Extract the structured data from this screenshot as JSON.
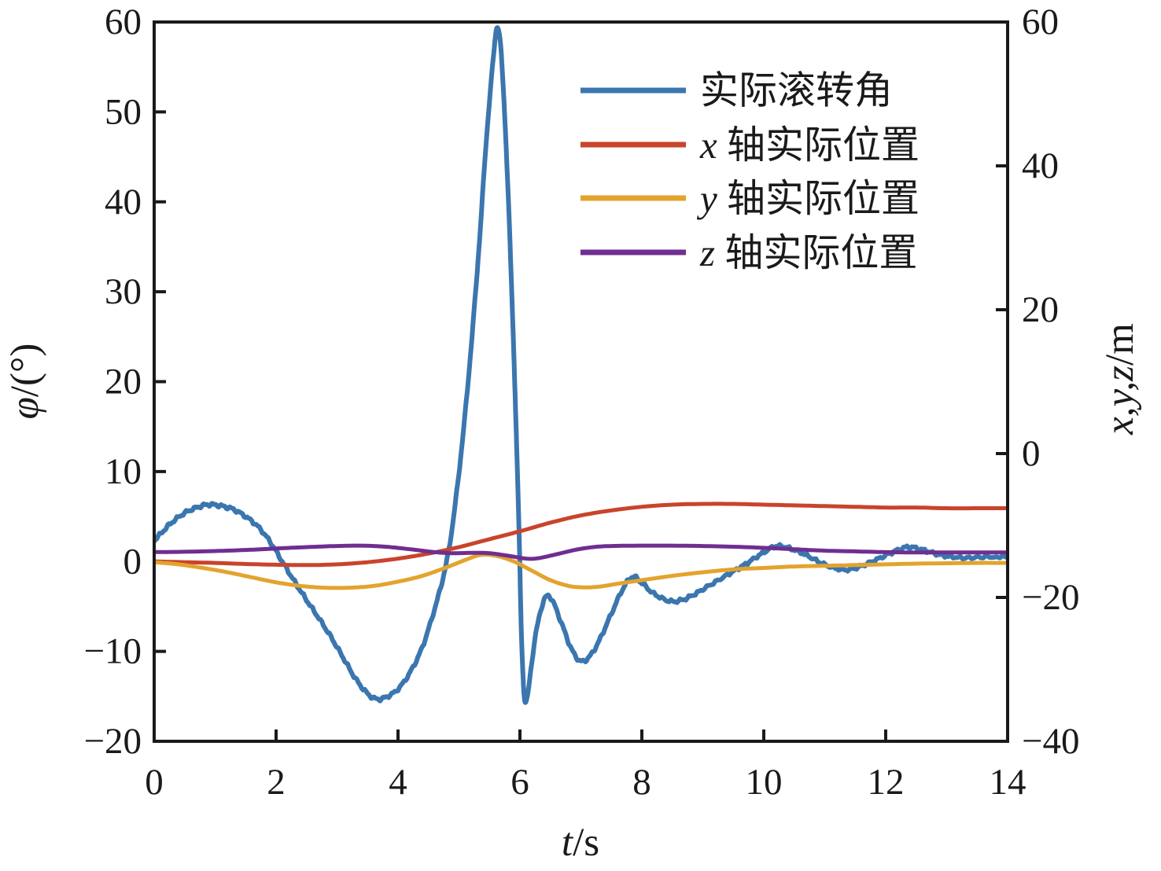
{
  "chart_data": {
    "type": "line",
    "title": "",
    "grid": false,
    "legend_position": "upper-right-inside",
    "x_axis": {
      "label_italic": "t",
      "label_rest": "/s",
      "range": [
        0,
        14
      ],
      "ticks": [
        0,
        2,
        4,
        6,
        8,
        10,
        12,
        14
      ]
    },
    "y_axis_left": {
      "label_italic": "φ",
      "label_rest": "/(°)",
      "range": [
        -20,
        60
      ],
      "ticks": [
        -20,
        -10,
        0,
        10,
        20,
        30,
        40,
        50,
        60
      ]
    },
    "y_axis_right": {
      "label_italic": "x,y,z",
      "label_rest": "/m",
      "range": [
        -40,
        60
      ],
      "ticks": [
        -40,
        -20,
        0,
        20,
        40,
        60
      ]
    },
    "series": [
      {
        "name": "roll-angle",
        "legend_prefix_italic": "",
        "legend_text": "实际滚转角",
        "axis": "left",
        "unit": "deg",
        "color": "#3b76af",
        "noisy": true,
        "points": [
          [
            0,
            2.3
          ],
          [
            0.15,
            3.4
          ],
          [
            0.3,
            4.4
          ],
          [
            0.5,
            5.4
          ],
          [
            0.7,
            6.0
          ],
          [
            0.85,
            6.3
          ],
          [
            1.0,
            6.3
          ],
          [
            1.15,
            6.1
          ],
          [
            1.3,
            5.8
          ],
          [
            1.5,
            5.0
          ],
          [
            1.7,
            3.9
          ],
          [
            1.9,
            2.2
          ],
          [
            2.1,
            0.0
          ],
          [
            2.3,
            -2.2
          ],
          [
            2.5,
            -4.3
          ],
          [
            2.7,
            -6.3
          ],
          [
            2.9,
            -8.4
          ],
          [
            3.1,
            -10.7
          ],
          [
            3.3,
            -13.0
          ],
          [
            3.5,
            -14.7
          ],
          [
            3.65,
            -15.3
          ],
          [
            3.8,
            -15.1
          ],
          [
            4.0,
            -14.2
          ],
          [
            4.2,
            -12.3
          ],
          [
            4.4,
            -9.5
          ],
          [
            4.6,
            -5.3
          ],
          [
            4.75,
            -1.5
          ],
          [
            4.85,
            2.0
          ],
          [
            4.95,
            7.0
          ],
          [
            5.05,
            13.0
          ],
          [
            5.15,
            20.0
          ],
          [
            5.25,
            28.0
          ],
          [
            5.35,
            37.0
          ],
          [
            5.45,
            47.0
          ],
          [
            5.55,
            55.0
          ],
          [
            5.62,
            59.4
          ],
          [
            5.68,
            57.5
          ],
          [
            5.74,
            51.0
          ],
          [
            5.8,
            42.0
          ],
          [
            5.86,
            31.0
          ],
          [
            5.91,
            21.0
          ],
          [
            5.95,
            12.0
          ],
          [
            5.99,
            2.0
          ],
          [
            6.02,
            -7.0
          ],
          [
            6.05,
            -12.6
          ],
          [
            6.08,
            -15.4
          ],
          [
            6.12,
            -15.2
          ],
          [
            6.18,
            -12.0
          ],
          [
            6.25,
            -8.5
          ],
          [
            6.35,
            -5.2
          ],
          [
            6.45,
            -3.8
          ],
          [
            6.55,
            -4.6
          ],
          [
            6.7,
            -7.2
          ],
          [
            6.85,
            -9.8
          ],
          [
            7.0,
            -11.1
          ],
          [
            7.15,
            -10.5
          ],
          [
            7.3,
            -8.8
          ],
          [
            7.5,
            -5.8
          ],
          [
            7.7,
            -2.9
          ],
          [
            7.85,
            -1.7
          ],
          [
            8.0,
            -2.4
          ],
          [
            8.2,
            -3.6
          ],
          [
            8.45,
            -4.4
          ],
          [
            8.65,
            -4.3
          ],
          [
            8.85,
            -3.7
          ],
          [
            9.1,
            -2.7
          ],
          [
            9.4,
            -1.5
          ],
          [
            9.7,
            -0.3
          ],
          [
            9.95,
            0.8
          ],
          [
            10.2,
            1.7
          ],
          [
            10.45,
            1.4
          ],
          [
            10.7,
            0.7
          ],
          [
            10.95,
            -0.2
          ],
          [
            11.2,
            -0.8
          ],
          [
            11.4,
            -0.9
          ],
          [
            11.6,
            -0.5
          ],
          [
            11.85,
            0.2
          ],
          [
            12.1,
            1.0
          ],
          [
            12.35,
            1.6
          ],
          [
            12.55,
            1.4
          ],
          [
            12.8,
            0.9
          ],
          [
            13.0,
            0.6
          ],
          [
            13.3,
            0.4
          ],
          [
            13.6,
            0.5
          ],
          [
            14,
            0.5
          ]
        ]
      },
      {
        "name": "x-position",
        "legend_prefix_italic": "x",
        "legend_text": " 轴实际位置",
        "axis": "right",
        "unit": "m",
        "color": "#c8442b",
        "noisy": false,
        "points": [
          [
            0,
            -15.0
          ],
          [
            0.5,
            -15.1
          ],
          [
            1.0,
            -15.2
          ],
          [
            1.5,
            -15.35
          ],
          [
            2.0,
            -15.45
          ],
          [
            2.5,
            -15.5
          ],
          [
            3.0,
            -15.4
          ],
          [
            3.5,
            -15.1
          ],
          [
            4.0,
            -14.6
          ],
          [
            4.5,
            -13.9
          ],
          [
            5.0,
            -13.0
          ],
          [
            5.5,
            -11.9
          ],
          [
            6.0,
            -10.8
          ],
          [
            6.5,
            -9.6
          ],
          [
            7.0,
            -8.6
          ],
          [
            7.5,
            -7.9
          ],
          [
            8.0,
            -7.4
          ],
          [
            8.5,
            -7.1
          ],
          [
            9.0,
            -7.0
          ],
          [
            9.5,
            -7.0
          ],
          [
            10.0,
            -7.1
          ],
          [
            10.5,
            -7.2
          ],
          [
            11.0,
            -7.3
          ],
          [
            11.5,
            -7.4
          ],
          [
            12.0,
            -7.5
          ],
          [
            12.5,
            -7.5
          ],
          [
            13.0,
            -7.6
          ],
          [
            13.5,
            -7.6
          ],
          [
            14.0,
            -7.6
          ]
        ]
      },
      {
        "name": "y-position",
        "legend_prefix_italic": "y",
        "legend_text": " 轴实际位置",
        "axis": "right",
        "unit": "m",
        "color": "#e3a32d",
        "noisy": false,
        "points": [
          [
            0,
            -15.1
          ],
          [
            0.4,
            -15.4
          ],
          [
            0.8,
            -15.9
          ],
          [
            1.2,
            -16.5
          ],
          [
            1.6,
            -17.2
          ],
          [
            2.0,
            -17.9
          ],
          [
            2.4,
            -18.4
          ],
          [
            2.8,
            -18.65
          ],
          [
            3.2,
            -18.65
          ],
          [
            3.6,
            -18.4
          ],
          [
            4.0,
            -17.8
          ],
          [
            4.4,
            -17.0
          ],
          [
            4.8,
            -15.8
          ],
          [
            5.1,
            -14.8
          ],
          [
            5.35,
            -14.1
          ],
          [
            5.6,
            -14.2
          ],
          [
            5.9,
            -15.0
          ],
          [
            6.2,
            -16.3
          ],
          [
            6.5,
            -17.6
          ],
          [
            6.8,
            -18.4
          ],
          [
            7.05,
            -18.6
          ],
          [
            7.3,
            -18.5
          ],
          [
            7.6,
            -18.1
          ],
          [
            8.0,
            -17.6
          ],
          [
            8.5,
            -17.0
          ],
          [
            9.0,
            -16.5
          ],
          [
            9.5,
            -16.1
          ],
          [
            10.0,
            -15.9
          ],
          [
            10.5,
            -15.7
          ],
          [
            11.0,
            -15.6
          ],
          [
            11.5,
            -15.5
          ],
          [
            12.0,
            -15.4
          ],
          [
            12.5,
            -15.3
          ],
          [
            13.0,
            -15.25
          ],
          [
            13.5,
            -15.2
          ],
          [
            14.0,
            -15.2
          ]
        ]
      },
      {
        "name": "z-position",
        "legend_prefix_italic": "z",
        "legend_text": " 轴实际位置",
        "axis": "right",
        "unit": "m",
        "color": "#6f2e90",
        "noisy": false,
        "points": [
          [
            0,
            -13.7
          ],
          [
            0.5,
            -13.65
          ],
          [
            1.0,
            -13.55
          ],
          [
            1.5,
            -13.4
          ],
          [
            2.0,
            -13.2
          ],
          [
            2.5,
            -13.0
          ],
          [
            3.0,
            -12.85
          ],
          [
            3.4,
            -12.8
          ],
          [
            3.8,
            -12.95
          ],
          [
            4.2,
            -13.3
          ],
          [
            4.6,
            -13.7
          ],
          [
            4.9,
            -13.85
          ],
          [
            5.2,
            -13.8
          ],
          [
            5.5,
            -13.85
          ],
          [
            5.8,
            -14.2
          ],
          [
            6.1,
            -14.6
          ],
          [
            6.3,
            -14.55
          ],
          [
            6.6,
            -14.0
          ],
          [
            6.9,
            -13.4
          ],
          [
            7.2,
            -13.0
          ],
          [
            7.5,
            -12.85
          ],
          [
            8.0,
            -12.8
          ],
          [
            8.5,
            -12.8
          ],
          [
            9.0,
            -12.85
          ],
          [
            9.5,
            -12.95
          ],
          [
            10.0,
            -13.1
          ],
          [
            10.5,
            -13.3
          ],
          [
            11.0,
            -13.5
          ],
          [
            11.5,
            -13.6
          ],
          [
            12.0,
            -13.7
          ],
          [
            12.5,
            -13.75
          ],
          [
            13.0,
            -13.75
          ],
          [
            13.5,
            -13.75
          ],
          [
            14.0,
            -13.75
          ]
        ]
      }
    ]
  }
}
